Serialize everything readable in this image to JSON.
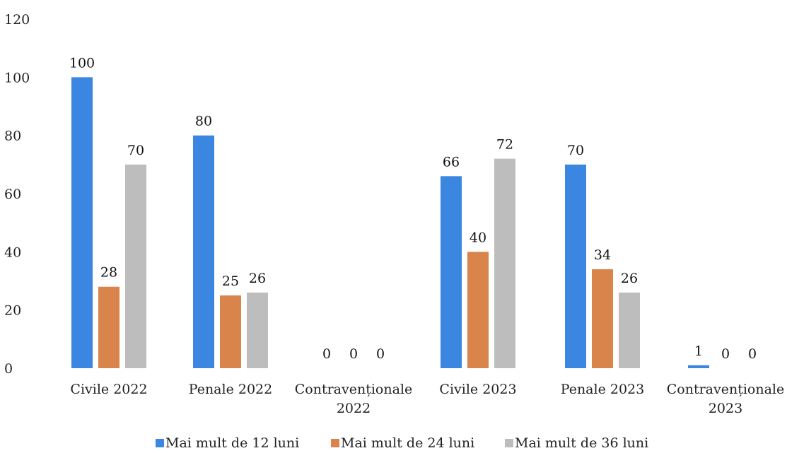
{
  "chart_data": {
    "type": "bar",
    "categories": [
      [
        "Civile 2022"
      ],
      [
        "Penale 2022"
      ],
      [
        "Contravenționale",
        "2022"
      ],
      [
        "Civile 2023"
      ],
      [
        "Penale 2023"
      ],
      [
        "Contravenționale",
        "2023"
      ]
    ],
    "series": [
      {
        "name": "Mai mult de 12 luni",
        "color": "#3a86e0",
        "values": [
          100,
          80,
          0,
          66,
          70,
          1
        ]
      },
      {
        "name": "Mai mult de 24 luni",
        "color": "#d8844a",
        "values": [
          28,
          25,
          0,
          40,
          34,
          0
        ]
      },
      {
        "name": "Mai mult de 36 luni",
        "color": "#bdbdbd",
        "values": [
          70,
          26,
          0,
          72,
          26,
          0
        ]
      }
    ],
    "y_ticks": [
      "0",
      "20",
      "40",
      "60",
      "80",
      "100",
      "120"
    ],
    "ylim": [
      0,
      120
    ],
    "grid": false,
    "legend_position": "bottom"
  }
}
